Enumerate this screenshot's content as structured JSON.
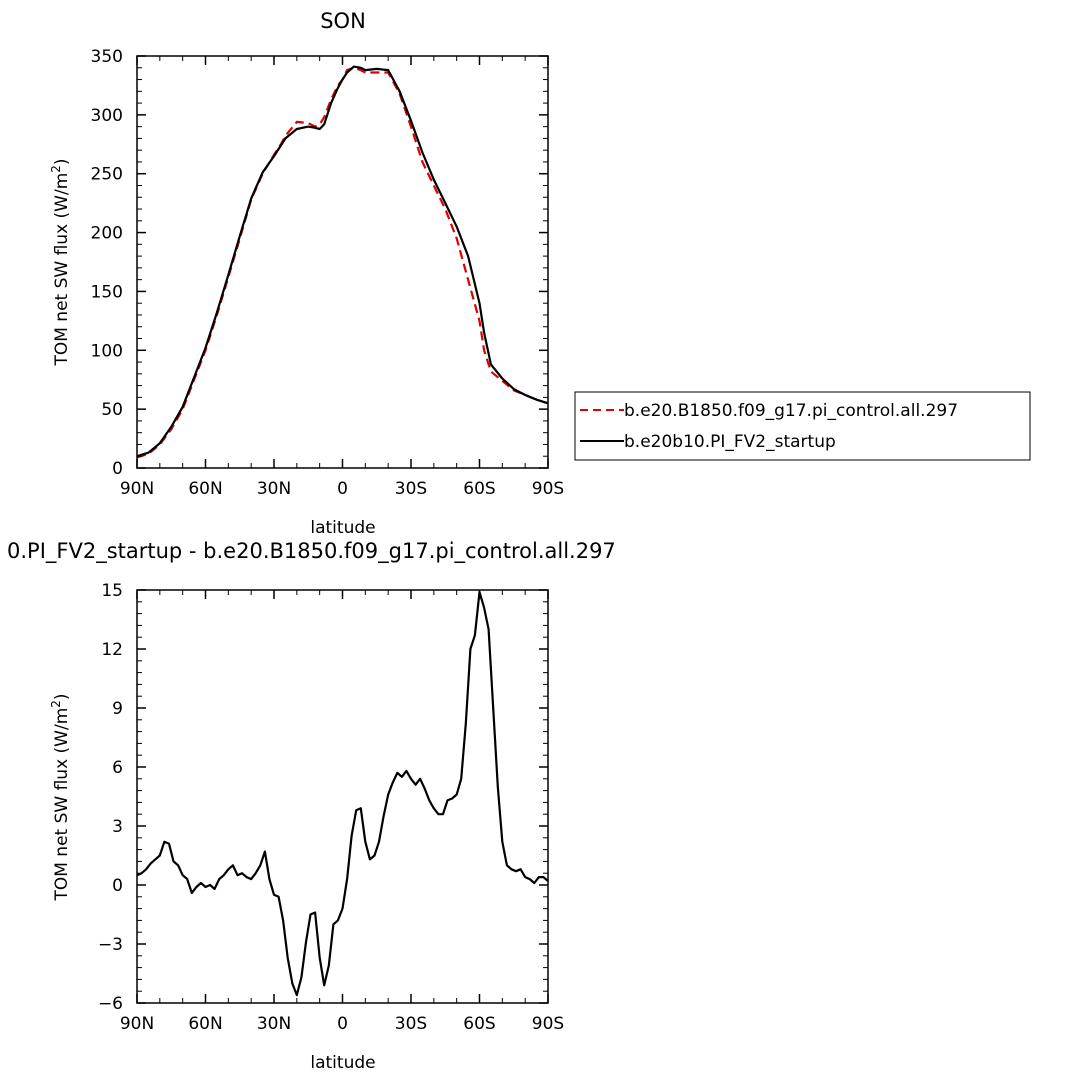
{
  "chart_data": [
    {
      "type": "line",
      "title": "SON",
      "xlabel": "latitude",
      "ylabel": "TOM net SW flux (W/m",
      "ylabel_sup": "2",
      "ylabel_tail": ")",
      "xlim": [
        90,
        -90
      ],
      "ylim": [
        0,
        350
      ],
      "x_ticks": [
        90,
        60,
        30,
        0,
        -30,
        -60,
        -90
      ],
      "x_tick_labels": [
        "90N",
        "60N",
        "30N",
        "0",
        "30S",
        "60S",
        "90S"
      ],
      "y_ticks": [
        0,
        50,
        100,
        150,
        200,
        250,
        300,
        350
      ],
      "y_tick_labels": [
        "0",
        "50",
        "100",
        "150",
        "200",
        "250",
        "300",
        "350"
      ],
      "legend_position": "right",
      "series": [
        {
          "name": "b.e20.B1850.f09_g17.pi_control.all.297",
          "color": "#e00000",
          "dash": "dashed",
          "x": [
            90,
            85,
            80,
            75,
            70,
            65,
            60,
            55,
            50,
            45,
            40,
            35,
            30,
            27,
            25,
            20,
            15,
            12,
            10,
            8,
            5,
            2,
            0,
            -2,
            -5,
            -8,
            -10,
            -15,
            -20,
            -25,
            -30,
            -35,
            -40,
            -45,
            -50,
            -55,
            -60,
            -62,
            -65,
            -70,
            -75,
            -80,
            -85,
            -90
          ],
          "y": [
            9,
            12,
            20,
            33,
            50,
            75,
            100,
            130,
            162,
            195,
            228,
            250,
            266,
            275,
            282,
            294,
            293,
            290,
            292,
            298,
            313,
            325,
            330,
            338,
            340,
            338,
            336,
            336,
            336,
            318,
            290,
            260,
            240,
            220,
            195,
            160,
            125,
            100,
            82,
            74,
            66,
            62,
            58,
            55
          ]
        },
        {
          "name": "b.e20b10.PI_FV2_startup",
          "color": "#000000",
          "dash": "solid",
          "x": [
            90,
            85,
            80,
            75,
            70,
            65,
            60,
            55,
            50,
            45,
            40,
            35,
            30,
            27,
            25,
            20,
            15,
            12,
            10,
            8,
            5,
            2,
            0,
            -2,
            -5,
            -8,
            -10,
            -15,
            -20,
            -25,
            -30,
            -35,
            -40,
            -45,
            -50,
            -55,
            -60,
            -62,
            -65,
            -70,
            -75,
            -80,
            -85,
            -90
          ],
          "y": [
            10,
            13,
            21,
            35,
            52,
            77,
            102,
            132,
            164,
            197,
            229,
            251,
            265,
            274,
            280,
            288,
            290,
            289,
            288,
            292,
            310,
            323,
            330,
            336,
            341,
            340,
            338,
            339,
            338,
            320,
            295,
            268,
            245,
            225,
            205,
            180,
            140,
            115,
            88,
            76,
            67,
            62,
            58,
            55
          ]
        }
      ]
    },
    {
      "type": "line",
      "title": "0.PI_FV2_startup - b.e20.B1850.f09_g17.pi_control.all.297",
      "xlabel": "latitude",
      "ylabel": "TOM net SW flux (W/m",
      "ylabel_sup": "2",
      "ylabel_tail": ")",
      "xlim": [
        90,
        -90
      ],
      "ylim": [
        -6,
        15
      ],
      "x_ticks": [
        90,
        60,
        30,
        0,
        -30,
        -60,
        -90
      ],
      "x_tick_labels": [
        "90N",
        "60N",
        "30N",
        "0",
        "30S",
        "60S",
        "90S"
      ],
      "y_ticks": [
        -6,
        -3,
        0,
        3,
        6,
        9,
        12,
        15
      ],
      "y_tick_labels": [
        "−6",
        "−3",
        "0",
        "3",
        "6",
        "9",
        "12",
        "15"
      ],
      "series": [
        {
          "color": "#000000",
          "dash": "solid",
          "x": [
            90,
            88,
            86,
            84,
            82,
            80,
            78,
            76,
            74,
            72,
            70,
            68,
            66,
            64,
            62,
            60,
            58,
            56,
            54,
            52,
            50,
            48,
            46,
            44,
            42,
            40,
            38,
            36,
            34,
            32,
            30,
            28,
            26,
            24,
            22,
            20,
            18,
            16,
            14,
            12,
            10,
            8,
            6,
            4,
            2,
            0,
            -2,
            -4,
            -6,
            -8,
            -10,
            -12,
            -14,
            -16,
            -18,
            -20,
            -22,
            -24,
            -26,
            -28,
            -30,
            -32,
            -34,
            -36,
            -38,
            -40,
            -42,
            -44,
            -46,
            -48,
            -50,
            -52,
            -54,
            -56,
            -58,
            -60,
            -62,
            -64,
            -66,
            -68,
            -70,
            -72,
            -74,
            -76,
            -78,
            -80,
            -82,
            -84,
            -86,
            -88,
            -90
          ],
          "y": [
            0.5,
            0.6,
            0.8,
            1.1,
            1.3,
            1.5,
            2.2,
            2.1,
            1.2,
            1.0,
            0.5,
            0.3,
            -0.4,
            -0.1,
            0.1,
            -0.1,
            0.0,
            -0.2,
            0.3,
            0.5,
            0.8,
            1.0,
            0.5,
            0.6,
            0.4,
            0.3,
            0.6,
            1.0,
            1.7,
            0.3,
            -0.5,
            -0.6,
            -1.8,
            -3.7,
            -5.0,
            -5.6,
            -4.7,
            -2.9,
            -1.5,
            -1.4,
            -3.7,
            -5.1,
            -4.1,
            -2.0,
            -1.8,
            -1.2,
            0.3,
            2.5,
            3.8,
            3.9,
            2.2,
            1.3,
            1.5,
            2.2,
            3.5,
            4.6,
            5.2,
            5.7,
            5.5,
            5.8,
            5.4,
            5.1,
            5.4,
            4.9,
            4.3,
            3.9,
            3.6,
            3.6,
            4.3,
            4.4,
            4.6,
            5.4,
            8.2,
            12.0,
            12.7,
            14.9,
            14.1,
            13.0,
            9.0,
            5.0,
            2.2,
            1.0,
            0.8,
            0.7,
            0.8,
            0.4,
            0.3,
            0.1,
            0.4,
            0.4,
            0.2
          ]
        }
      ]
    }
  ]
}
